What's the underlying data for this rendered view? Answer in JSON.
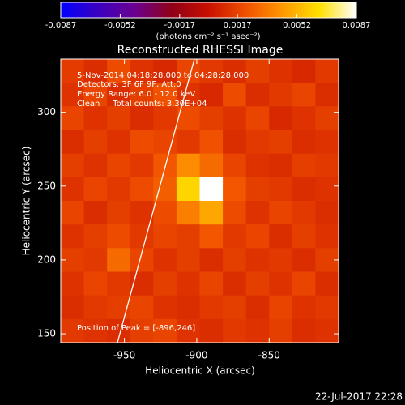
{
  "chart_data": {
    "type": "heatmap",
    "title": "Reconstructed RHESSI Image",
    "xlabel": "Heliocentric X (arcsec)",
    "ylabel": "Heliocentric Y (arcsec)",
    "colorbar_label": "(photons cm⁻² s⁻¹ asec⁻²)",
    "annotations": [
      "5-Nov-2014 04:18:28.000 to 04:28:28.000",
      "Detectors: 3F 6F 9F, Att:0",
      "Energy Range: 6.0 - 12.0 keV",
      "Clean     Total counts: 3.30E+04"
    ],
    "peak_label": "Position of Peak = [-896,246]",
    "footer": "22-Jul-2017 22:28",
    "colormap": [
      "#0000ff",
      "#3a00c0",
      "#6a0090",
      "#900018",
      "#c81000",
      "#f05000",
      "#ff9800",
      "#ffe000",
      "#ffffff"
    ],
    "zlim": [
      -0.0087,
      0.0087
    ],
    "zticks": [
      -0.0087,
      -0.0052,
      -0.0017,
      0.0017,
      0.0052,
      0.0087
    ],
    "xlim": [
      -994,
      -802
    ],
    "ylim": [
      144,
      336
    ],
    "xticks": [
      -950,
      -900,
      -850
    ],
    "yticks": [
      150,
      200,
      250,
      300
    ],
    "x": [
      -986,
      -970,
      -954,
      -938,
      -922,
      -906,
      -890,
      -874,
      -858,
      -842,
      -826,
      -810
    ],
    "y": [
      328,
      312,
      296,
      280,
      264,
      248,
      232,
      216,
      200,
      184,
      168,
      152
    ],
    "z": [
      [
        0.0015,
        0.001,
        0.002,
        0.0012,
        0.0008,
        0.0018,
        0.0014,
        0.001,
        0.0016,
        0.0012,
        0.0008,
        0.0014
      ],
      [
        0.0012,
        0.0018,
        0.001,
        0.0016,
        0.0022,
        0.0012,
        0.0008,
        0.002,
        0.001,
        0.0014,
        0.0018,
        0.001
      ],
      [
        0.0018,
        0.0012,
        0.0016,
        0.001,
        0.0014,
        0.002,
        0.0016,
        0.0012,
        0.0018,
        0.0008,
        0.0012,
        0.0016
      ],
      [
        0.001,
        0.0016,
        0.0012,
        0.002,
        0.0018,
        0.0014,
        0.0022,
        0.001,
        0.0014,
        0.0016,
        0.001,
        0.0012
      ],
      [
        0.0016,
        0.0012,
        0.0018,
        0.0014,
        0.0024,
        0.004,
        0.003,
        0.0018,
        0.0012,
        0.001,
        0.0016,
        0.0014
      ],
      [
        0.0012,
        0.0018,
        0.0014,
        0.002,
        0.0026,
        0.0062,
        0.0087,
        0.0024,
        0.0016,
        0.0014,
        0.001,
        0.0012
      ],
      [
        0.0018,
        0.001,
        0.0016,
        0.0012,
        0.002,
        0.0036,
        0.0048,
        0.002,
        0.0012,
        0.0018,
        0.0014,
        0.001
      ],
      [
        0.0012,
        0.0016,
        0.002,
        0.0014,
        0.0018,
        0.0016,
        0.0024,
        0.0014,
        0.0018,
        0.001,
        0.0016,
        0.0012
      ],
      [
        0.0016,
        0.0014,
        0.003,
        0.0018,
        0.0012,
        0.0016,
        0.001,
        0.0016,
        0.0012,
        0.0014,
        0.001,
        0.0016
      ],
      [
        0.0012,
        0.0018,
        0.0014,
        0.001,
        0.0016,
        0.0012,
        0.0018,
        0.001,
        0.0016,
        0.0012,
        0.0018,
        0.001
      ],
      [
        0.001,
        0.0014,
        0.0016,
        0.0018,
        0.0012,
        0.001,
        0.0014,
        0.0016,
        0.001,
        0.0018,
        0.0012,
        0.0014
      ],
      [
        0.0014,
        0.0012,
        0.001,
        0.0016,
        0.0018,
        0.0012,
        0.001,
        0.0014,
        0.0012,
        0.0016,
        0.001,
        0.0012
      ]
    ]
  }
}
